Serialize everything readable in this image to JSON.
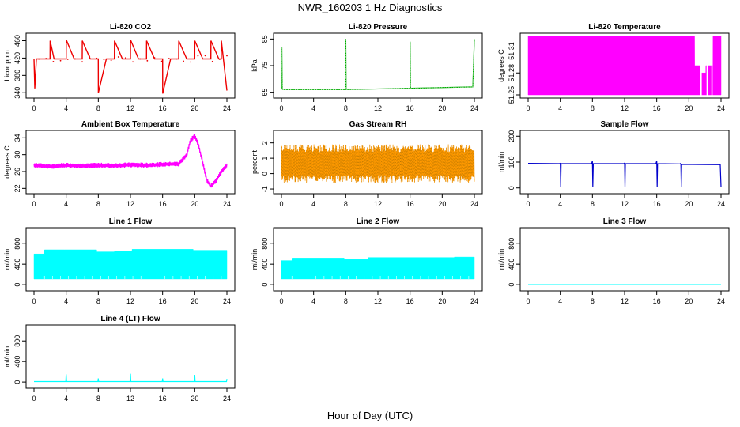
{
  "title": "NWR_160203  1 Hz Diagnostics",
  "xlabel": "Hour of Day (UTC)",
  "chart_data": [
    {
      "id": "co2",
      "type": "line",
      "title": "Li-820 CO2",
      "ylabel": "Licor ppm",
      "color": "#ee0000",
      "yticks": [
        "340",
        "380",
        "420",
        "460"
      ],
      "ylim": [
        335,
        470
      ],
      "x": [
        0,
        0.1,
        0.3,
        1,
        1.5,
        2,
        2.01,
        2.5,
        3,
        4,
        4.01,
        5,
        6,
        6.01,
        7,
        8,
        8.01,
        9,
        10,
        10.01,
        11,
        12,
        12.01,
        13,
        14,
        14.01,
        15,
        16,
        16.01,
        17,
        18,
        18.01,
        19,
        20,
        20.01,
        21,
        22,
        22.01,
        23,
        23.3,
        23.31,
        24
      ],
      "values": [
        418,
        350,
        418,
        418,
        418,
        418,
        460,
        418,
        418,
        418,
        462,
        418,
        418,
        460,
        418,
        418,
        340,
        418,
        418,
        460,
        418,
        418,
        462,
        418,
        418,
        460,
        418,
        418,
        338,
        418,
        418,
        460,
        418,
        418,
        460,
        418,
        418,
        460,
        418,
        418,
        460,
        345
      ],
      "spikes_up_hours": [
        2,
        4,
        6,
        10,
        12,
        14,
        18,
        20,
        22,
        23.3
      ],
      "spikes_down_hours": [
        8,
        16,
        24
      ]
    },
    {
      "id": "pressure",
      "type": "line",
      "title": "Li-820 Pressure",
      "ylabel": "kPa",
      "color": "#00aa00",
      "yticks": [
        "65",
        "75",
        "85"
      ],
      "ylim": [
        64,
        86
      ],
      "x": [
        0,
        0.05,
        0.1,
        0.2,
        8,
        8.01,
        8.05,
        8.1,
        16,
        16.01,
        16.05,
        16.1,
        23.8,
        24
      ],
      "values": [
        66,
        82,
        66.5,
        66,
        66,
        85,
        66.5,
        66,
        66.5,
        84,
        66.8,
        66.5,
        67,
        85
      ]
    },
    {
      "id": "licor_temp",
      "type": "area",
      "title": "Li-820 Temperature",
      "ylabel": "degrees C",
      "color": "#ff00ff",
      "yticks": [
        "51.25",
        "51.28",
        "51.31"
      ],
      "ylim": [
        51.25,
        51.33
      ],
      "x": [
        0,
        20.7,
        20.71,
        21.4,
        21.41,
        22.1,
        22.11,
        23,
        23.01,
        24
      ],
      "values": [
        51.33,
        51.33,
        51.29,
        51.29,
        51.28,
        51.28,
        51.29,
        51.29,
        51.33,
        51.33
      ]
    },
    {
      "id": "ambient_temp",
      "type": "line",
      "title": "Ambient Box Temperature",
      "ylabel": "degrees C",
      "color": "#ff00ff",
      "yticks": [
        "22",
        "26",
        "30",
        "34"
      ],
      "ylim": [
        21.5,
        35
      ],
      "x": [
        0,
        2,
        4,
        6,
        8,
        10,
        12,
        14,
        16,
        18,
        19,
        19.5,
        20,
        20.5,
        21,
        21.5,
        22,
        22.5,
        23,
        23.5,
        24
      ],
      "values": [
        27.5,
        27.2,
        27.5,
        27.3,
        27.5,
        27.4,
        27.6,
        27.5,
        27.7,
        27.8,
        30,
        33.5,
        34.5,
        32,
        28,
        24,
        22.5,
        23.5,
        25,
        26.5,
        27.5
      ]
    },
    {
      "id": "rh",
      "type": "line",
      "title": "Gas Stream RH",
      "ylabel": "percent",
      "color": "#ff9900",
      "yticks": [
        "-1",
        "0",
        "1",
        "2"
      ],
      "ylim": [
        -1.1,
        2.6
      ],
      "x": [
        0,
        24
      ],
      "values": [
        0.6,
        0.6
      ],
      "band_low": -0.6,
      "band_high": 1.9
    },
    {
      "id": "sample_flow",
      "type": "line",
      "title": "Sample Flow",
      "ylabel": "ml/min",
      "color": "#0000cc",
      "yticks": [
        "0",
        "100",
        "200"
      ],
      "ylim": [
        -10,
        210
      ],
      "x": [
        0,
        3.9,
        4,
        4.05,
        4.1,
        7.9,
        8,
        8.05,
        8.1,
        11.9,
        12,
        12.05,
        12.1,
        15.9,
        16,
        16.05,
        16.1,
        18.9,
        19,
        19.05,
        19.1,
        23.9,
        24
      ],
      "values": [
        95,
        94,
        95,
        5,
        94,
        94,
        105,
        5,
        94,
        94,
        96,
        5,
        94,
        94,
        105,
        5,
        94,
        93,
        95,
        5,
        91,
        90,
        3
      ]
    },
    {
      "id": "line1",
      "type": "area",
      "title": "Line 1 Flow",
      "ylabel": "ml/min",
      "color": "#00ffff",
      "yticks": [
        "0",
        "400",
        "800"
      ],
      "ylim": [
        -60,
        1050
      ],
      "x": [
        0,
        1.3,
        1.31,
        3.8,
        3.81,
        7.8,
        7.81,
        10,
        10.01,
        12.2,
        12.21,
        19.8,
        19.81,
        24
      ],
      "values": [
        600,
        600,
        680,
        680,
        680,
        680,
        640,
        640,
        660,
        660,
        690,
        690,
        670,
        670
      ],
      "band_low": 110
    },
    {
      "id": "line2",
      "type": "area",
      "title": "Line 2 Flow",
      "ylabel": "ml/min",
      "color": "#00ffff",
      "yticks": [
        "0",
        "400",
        "800"
      ],
      "ylim": [
        -60,
        1050
      ],
      "x": [
        0,
        1.3,
        1.31,
        7.8,
        7.81,
        10.8,
        10.81,
        21.5,
        21.51,
        24
      ],
      "values": [
        470,
        470,
        520,
        520,
        490,
        490,
        530,
        530,
        540,
        540
      ],
      "band_low": 110
    },
    {
      "id": "line3",
      "type": "line",
      "title": "Line 3 Flow",
      "ylabel": "ml/min",
      "color": "#00ffff",
      "yticks": [
        "0",
        "400",
        "800"
      ],
      "ylim": [
        -60,
        1050
      ],
      "x": [
        0,
        24
      ],
      "values": [
        0,
        0
      ]
    },
    {
      "id": "line4",
      "type": "line",
      "title": "Line 4 (LT) Flow",
      "ylabel": "ml/min",
      "color": "#00ffff",
      "yticks": [
        "0",
        "400",
        "800"
      ],
      "ylim": [
        -60,
        1050
      ],
      "x": [
        0,
        3.95,
        4,
        4.05,
        7.95,
        8,
        8.05,
        11.95,
        12,
        12.05,
        15.95,
        16,
        16.05,
        19.95,
        20,
        20.05,
        23.95,
        24
      ],
      "values": [
        10,
        10,
        150,
        10,
        10,
        70,
        10,
        10,
        160,
        10,
        10,
        70,
        10,
        10,
        140,
        10,
        10,
        60
      ]
    }
  ],
  "xticks": [
    "0",
    "4",
    "8",
    "12",
    "16",
    "20",
    "24"
  ],
  "xlim": [
    0,
    24
  ]
}
